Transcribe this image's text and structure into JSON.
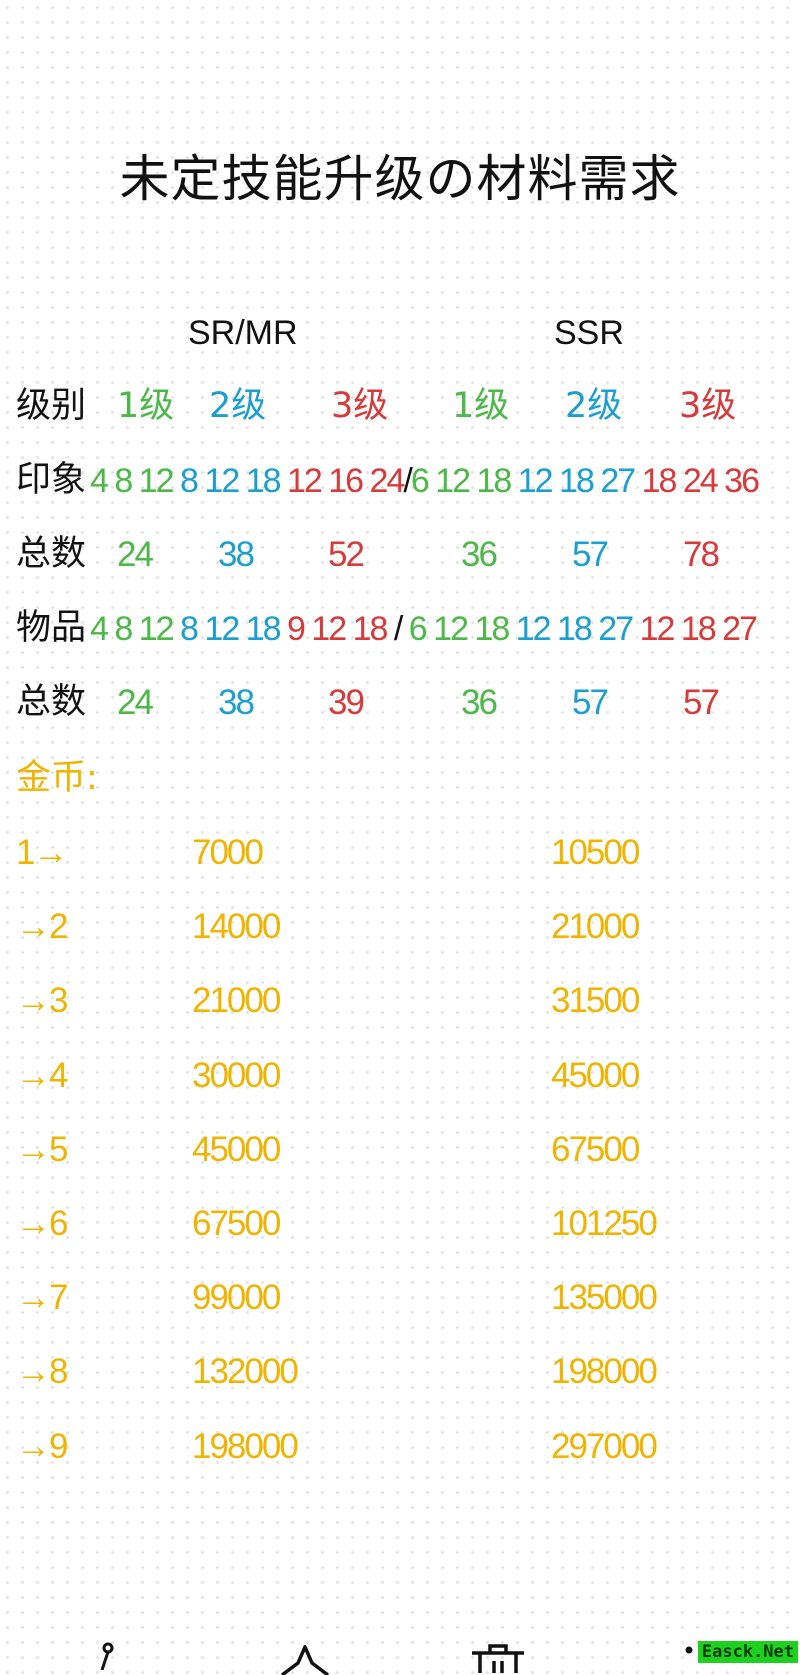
{
  "title": "未定技能升级の材料需求",
  "headers": {
    "left": "SR/MR",
    "right": "SSR"
  },
  "colors": {
    "level1": "#4cb848",
    "level2": "#1a9fd0",
    "level3": "#d63a3a",
    "gold": "#f0b400"
  },
  "level_row": {
    "label": "级别",
    "levels": [
      "1级",
      "2级",
      "3级",
      "1级",
      "2级",
      "3级"
    ]
  },
  "impression_row": {
    "label": "印象",
    "sr": [
      [
        "4",
        "8",
        "12"
      ],
      [
        "8",
        "12",
        "18"
      ],
      [
        "12",
        "16",
        "24"
      ]
    ],
    "separator": "/",
    "ssr": [
      [
        "6",
        "12",
        "18"
      ],
      [
        "12",
        "18",
        "27"
      ],
      [
        "18",
        "24",
        "36"
      ]
    ]
  },
  "impression_total": {
    "label": "总数",
    "values": [
      "24",
      "38",
      "52",
      "36",
      "57",
      "78"
    ]
  },
  "item_row": {
    "label": "物品",
    "sr": [
      [
        "4",
        "8",
        "12"
      ],
      [
        "8",
        "12",
        "18"
      ],
      [
        "9",
        "12",
        "18"
      ]
    ],
    "separator": " / ",
    "ssr": [
      [
        "6",
        "12",
        "18"
      ],
      [
        "12",
        "18",
        "27"
      ],
      [
        "12",
        "18",
        "27"
      ]
    ]
  },
  "item_total": {
    "label": "总数",
    "values": [
      "24",
      "38",
      "39",
      "36",
      "57",
      "57"
    ]
  },
  "gold": {
    "label": "金币:",
    "rows": [
      {
        "step": "1→",
        "sr": "7000",
        "ssr": "10500"
      },
      {
        "step": "→2",
        "sr": "14000",
        "ssr": "21000"
      },
      {
        "step": "→3",
        "sr": "21000",
        "ssr": "31500"
      },
      {
        "step": "→4",
        "sr": "30000",
        "ssr": "45000"
      },
      {
        "step": "→5",
        "sr": "45000",
        "ssr": "67500"
      },
      {
        "step": "→6",
        "sr": "67500",
        "ssr": "101250"
      },
      {
        "step": "→7",
        "sr": "99000",
        "ssr": "135000"
      },
      {
        "step": "→8",
        "sr": "132000",
        "ssr": "198000"
      },
      {
        "step": "→9",
        "sr": "198000",
        "ssr": "297000"
      }
    ]
  },
  "toolbar": {
    "icons": [
      "pen-icon",
      "star-icon",
      "trash-icon",
      "more-icon"
    ]
  },
  "watermark": "Easck.Net"
}
